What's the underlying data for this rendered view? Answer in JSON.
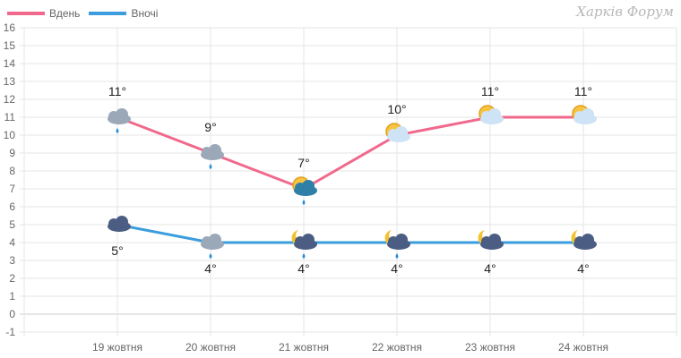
{
  "chart_data": {
    "type": "line",
    "categories": [
      "19 жовтня",
      "20 жовтня",
      "21 жовтня",
      "22 жовтня",
      "23 жовтня",
      "24 жовтня"
    ],
    "ylim": [
      -1,
      16
    ],
    "yticks": [
      -1,
      0,
      1,
      2,
      3,
      4,
      5,
      6,
      7,
      8,
      9,
      10,
      11,
      12,
      13,
      14,
      15,
      16
    ],
    "grid": true,
    "legend_position": "top-left",
    "series": [
      {
        "name": "Вдень",
        "color": "#f0698c",
        "values": [
          11,
          9,
          7,
          10,
          11,
          11
        ],
        "labels": [
          "11°",
          "9°",
          "7°",
          "10°",
          "11°",
          "11°"
        ],
        "icons": [
          "rain-cloud-icon",
          "rain-cloud-icon",
          "sun-rain-cloud-icon",
          "sun-cloud-icon",
          "sun-cloud-icon",
          "sun-cloud-icon"
        ]
      },
      {
        "name": "Вночі",
        "color": "#3b9ddd",
        "values": [
          5,
          4,
          4,
          4,
          4,
          4
        ],
        "labels": [
          "5°",
          "4°",
          "4°",
          "4°",
          "4°",
          "4°"
        ],
        "icons": [
          "dark-cloud-icon",
          "rain-cloud-icon",
          "moon-rain-cloud-icon",
          "moon-rain-cloud-icon",
          "moon-cloud-icon",
          "moon-cloud-icon"
        ]
      }
    ]
  },
  "watermark": "Харків Форум"
}
